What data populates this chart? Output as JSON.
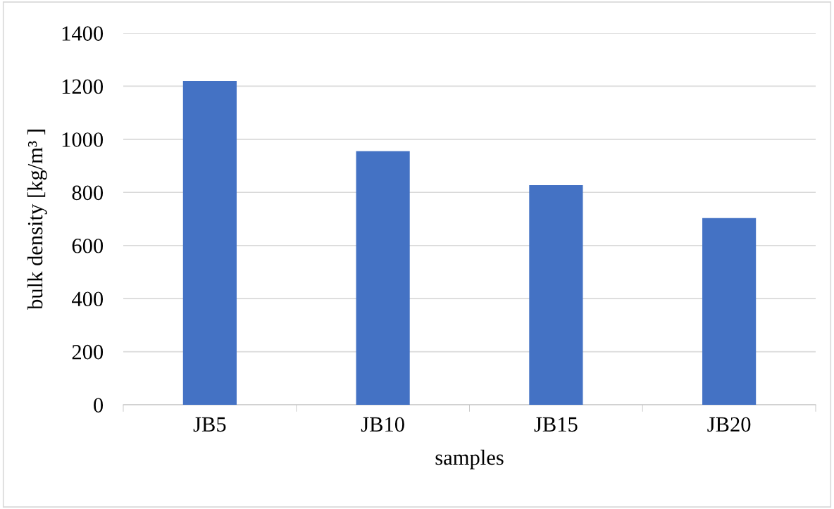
{
  "chart_data": {
    "type": "bar",
    "xlabel": "samples",
    "ylabel": "bulk density [kg/m³ ]",
    "categories": [
      "JB5",
      "JB10",
      "JB15",
      "JB20"
    ],
    "values": [
      1220,
      955,
      827,
      703
    ],
    "color": "#4472c4",
    "ylim": [
      0,
      1400
    ],
    "yticks": [
      0,
      200,
      400,
      600,
      800,
      1000,
      1200,
      1400
    ],
    "grid": "y"
  }
}
